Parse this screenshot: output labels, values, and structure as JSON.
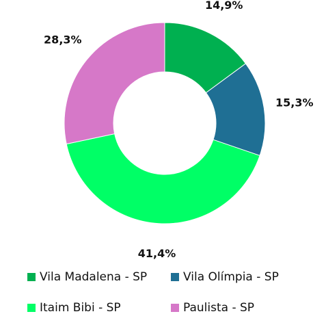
{
  "chart_data": {
    "type": "donut",
    "categories": [
      "Vila Madalena - SP",
      "Vila Olímpia - SP",
      "Itaim Bibi - SP",
      "Paulista - SP"
    ],
    "values": [
      14.9,
      15.3,
      41.4,
      28.3
    ],
    "value_labels": [
      "14,9%",
      "15,3%",
      "41,4%",
      "28,3%"
    ],
    "colors": [
      "#00b050",
      "#1f6f94",
      "#00ff66",
      "#d678c8"
    ],
    "legend": "bottom"
  }
}
